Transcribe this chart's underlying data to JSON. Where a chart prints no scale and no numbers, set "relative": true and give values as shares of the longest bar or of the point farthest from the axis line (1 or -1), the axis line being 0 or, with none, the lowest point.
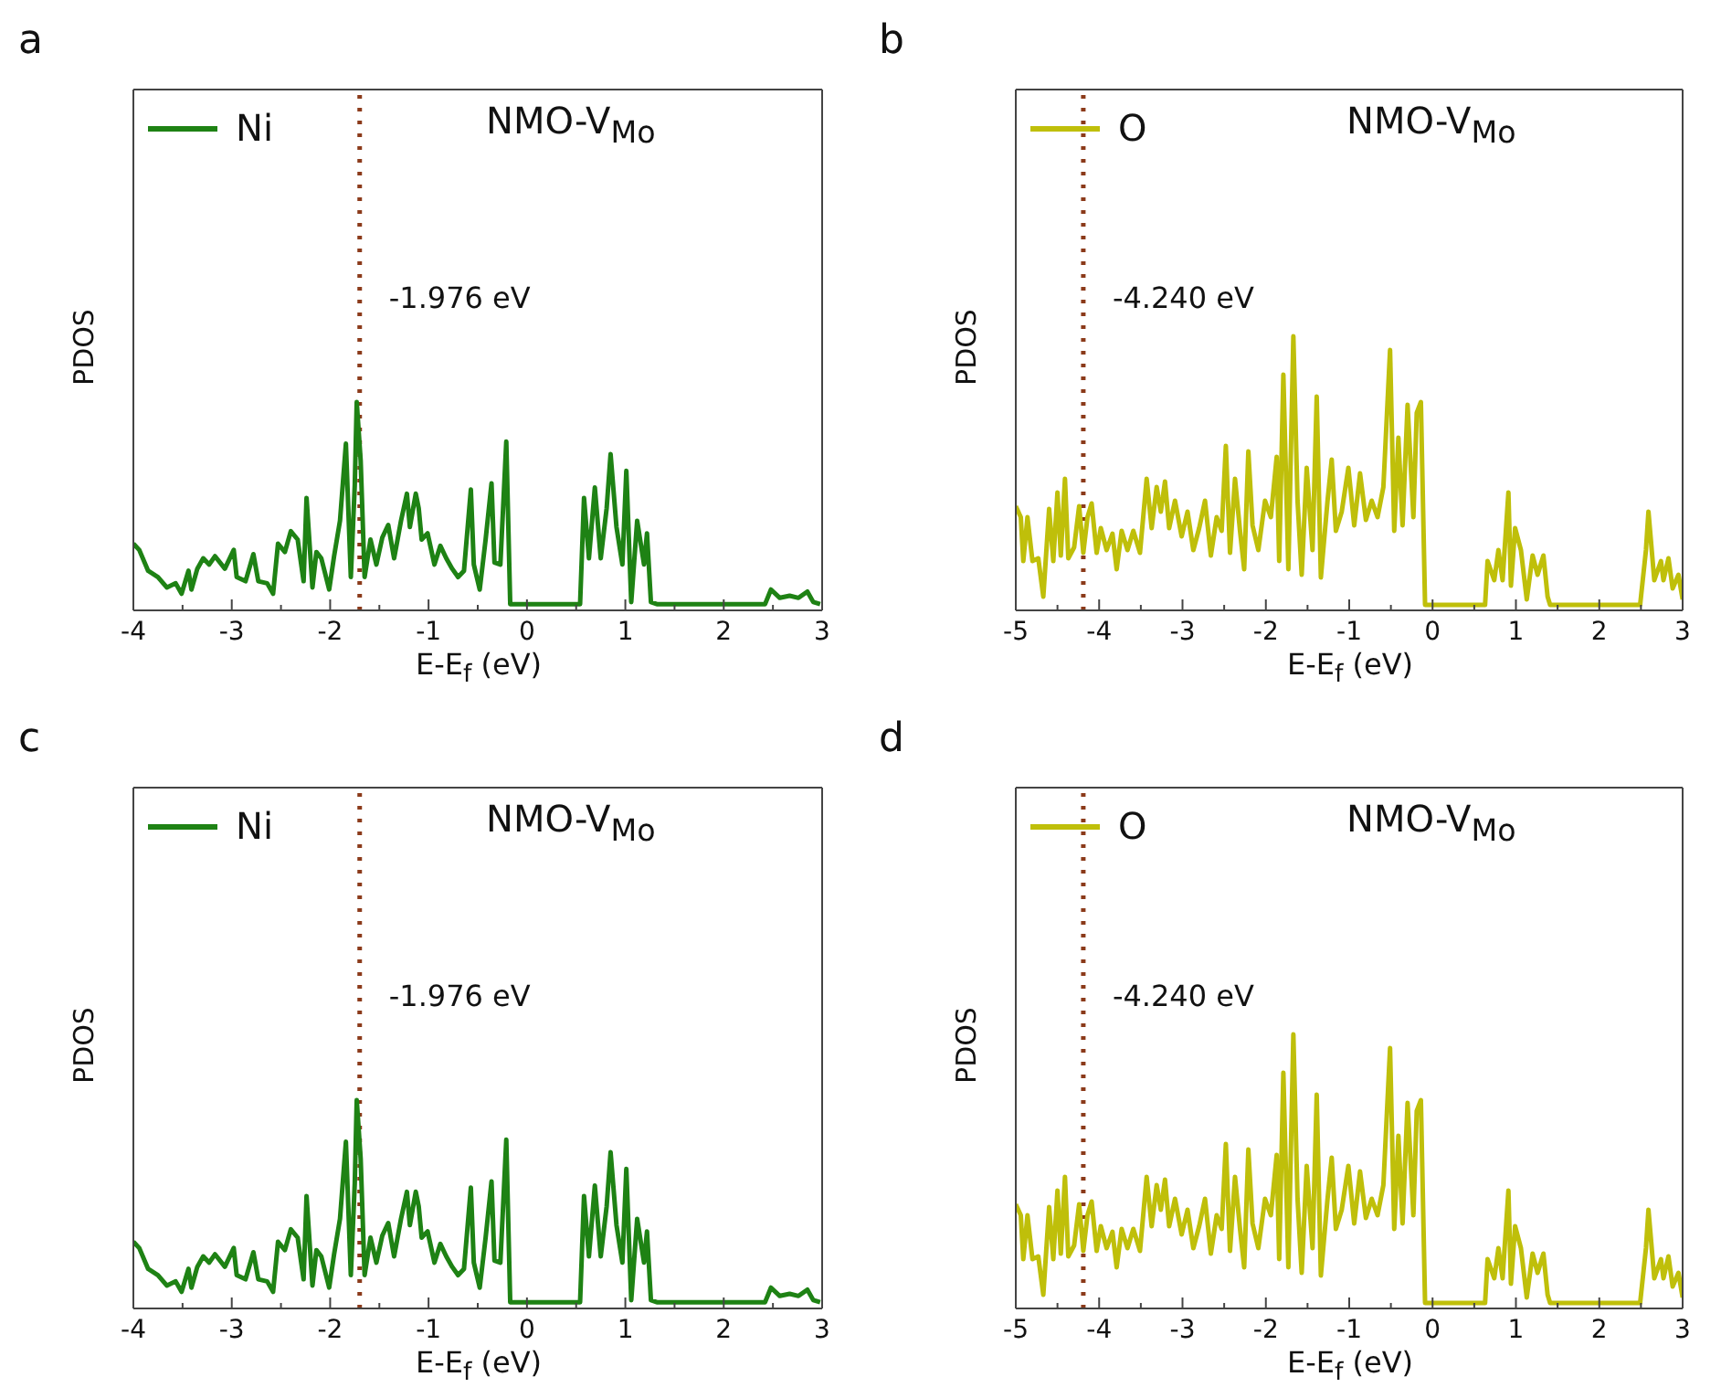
{
  "chart_data": [
    {
      "type": "line",
      "title": "a",
      "xlabel": "E-E$_{f}$ (eV)",
      "ylabel": "PDOS",
      "relative": true,
      "legend": "top left",
      "marker": "none",
      "line_style": "solid",
      "xlim": [
        -4,
        3
      ],
      "xticks": [
        -4,
        {
          "value": -3.5,
          "label": null
        },
        -3,
        {
          "value": -2.5,
          "label": null
        },
        -2,
        {
          "value": -1.5,
          "label": null
        },
        -1,
        {
          "value": -0.5,
          "label": null
        },
        0,
        {
          "value": 0.5,
          "label": null
        },
        1,
        {
          "value": 1.5,
          "label": null
        },
        2,
        {
          "value": 2.5,
          "label": null
        },
        3
      ],
      "annotations": [
        "NMO-V$_{Mo}$"
      ],
      "ref_lines": [
        {
          "axis": "x",
          "value": -1.7,
          "label": "-1.976 eV",
          "color": "#8b3a1a",
          "line_style": "dotted"
        }
      ],
      "x": [
        -4.0,
        -3.94,
        -3.85,
        -3.75,
        -3.66,
        -3.57,
        -3.51,
        -3.44,
        -3.41,
        -3.35,
        -3.29,
        -3.23,
        -3.17,
        -3.07,
        -2.98,
        -2.95,
        -2.86,
        -2.78,
        -2.73,
        -2.64,
        -2.58,
        -2.53,
        -2.46,
        -2.4,
        -2.33,
        -2.27,
        -2.24,
        -2.18,
        -2.14,
        -2.09,
        -2.01,
        -1.96,
        -1.9,
        -1.84,
        -1.79,
        -1.75,
        -1.73,
        -1.69,
        -1.65,
        -1.59,
        -1.53,
        -1.47,
        -1.41,
        -1.35,
        -1.28,
        -1.22,
        -1.19,
        -1.13,
        -1.1,
        -1.07,
        -1.01,
        -0.94,
        -0.88,
        -0.82,
        -0.76,
        -0.7,
        -0.64,
        -0.57,
        -0.54,
        -0.48,
        -0.42,
        -0.36,
        -0.33,
        -0.27,
        -0.21,
        -0.17,
        -0.11,
        0.54,
        0.58,
        0.63,
        0.69,
        0.75,
        0.81,
        0.85,
        0.91,
        0.97,
        1.01,
        1.06,
        1.12,
        1.19,
        1.22,
        1.26,
        1.32,
        2.42,
        2.48,
        2.57,
        2.67,
        2.76,
        2.85,
        2.91,
        2.98
      ],
      "series": [
        {
          "name": "Ni",
          "color": "#1e8214",
          "values": [
            0.32,
            0.29,
            0.19,
            0.16,
            0.11,
            0.13,
            0.08,
            0.19,
            0.1,
            0.2,
            0.25,
            0.22,
            0.26,
            0.2,
            0.29,
            0.16,
            0.14,
            0.27,
            0.14,
            0.13,
            0.08,
            0.32,
            0.28,
            0.38,
            0.34,
            0.14,
            0.54,
            0.11,
            0.28,
            0.25,
            0.1,
            0.26,
            0.43,
            0.8,
            0.16,
            0.6,
            1.0,
            0.72,
            0.16,
            0.34,
            0.22,
            0.35,
            0.41,
            0.25,
            0.43,
            0.56,
            0.4,
            0.56,
            0.49,
            0.34,
            0.37,
            0.22,
            0.31,
            0.25,
            0.2,
            0.16,
            0.19,
            0.58,
            0.22,
            0.1,
            0.34,
            0.61,
            0.23,
            0.22,
            0.81,
            0.03,
            0.03,
            0.03,
            0.54,
            0.25,
            0.59,
            0.25,
            0.49,
            0.75,
            0.4,
            0.22,
            0.67,
            0.04,
            0.43,
            0.22,
            0.37,
            0.04,
            0.03,
            0.03,
            0.1,
            0.06,
            0.07,
            0.06,
            0.09,
            0.04,
            0.03
          ]
        }
      ]
    },
    {
      "type": "line",
      "title": "b",
      "xlabel": "E-E$_{f}$ (eV)",
      "ylabel": "PDOS",
      "relative": true,
      "legend": "top left",
      "marker": "none",
      "line_style": "solid",
      "xlim": [
        -5,
        3
      ],
      "xticks": [
        -5,
        {
          "value": -4.5,
          "label": null
        },
        -4,
        {
          "value": -3.5,
          "label": null
        },
        -3,
        {
          "value": -2.5,
          "label": null
        },
        -2,
        {
          "value": -1.5,
          "label": null
        },
        -1,
        {
          "value": -0.5,
          "label": null
        },
        0,
        {
          "value": 0.5,
          "label": null
        },
        1,
        {
          "value": 1.5,
          "label": null
        },
        2,
        {
          "value": 2.5,
          "label": null
        },
        3
      ],
      "annotations": [
        "NMO-V$_{Mo}$"
      ],
      "ref_lines": [
        {
          "axis": "x",
          "value": -4.19,
          "label": "-4.240 eV",
          "color": "#8b3a1a",
          "line_style": "dotted"
        }
      ],
      "x": [
        -5.0,
        -4.94,
        -4.91,
        -4.86,
        -4.8,
        -4.73,
        -4.67,
        -4.6,
        -4.55,
        -4.5,
        -4.46,
        -4.41,
        -4.37,
        -4.3,
        -4.24,
        -4.19,
        -4.14,
        -4.09,
        -4.03,
        -3.98,
        -3.91,
        -3.84,
        -3.79,
        -3.73,
        -3.66,
        -3.59,
        -3.51,
        -3.43,
        -3.37,
        -3.31,
        -3.26,
        -3.21,
        -3.16,
        -3.09,
        -3.01,
        -2.94,
        -2.87,
        -2.8,
        -2.73,
        -2.66,
        -2.59,
        -2.53,
        -2.48,
        -2.43,
        -2.37,
        -2.31,
        -2.26,
        -2.21,
        -2.16,
        -2.09,
        -2.01,
        -1.94,
        -1.87,
        -1.84,
        -1.79,
        -1.73,
        -1.67,
        -1.62,
        -1.57,
        -1.51,
        -1.44,
        -1.39,
        -1.34,
        -1.26,
        -1.21,
        -1.16,
        -1.09,
        -1.01,
        -0.94,
        -0.87,
        -0.8,
        -0.73,
        -0.66,
        -0.59,
        -0.51,
        -0.46,
        -0.41,
        -0.36,
        -0.3,
        -0.23,
        -0.19,
        -0.14,
        -0.09,
        0.63,
        0.66,
        0.74,
        0.79,
        0.84,
        0.91,
        0.94,
        0.99,
        1.06,
        1.13,
        1.2,
        1.26,
        1.33,
        1.38,
        1.41,
        2.49,
        2.56,
        2.59,
        2.66,
        2.74,
        2.77,
        2.83,
        2.88,
        2.95,
        3.0
      ],
      "series": [
        {
          "name": "O",
          "color": "#bfbf0a",
          "values": [
            0.38,
            0.34,
            0.18,
            0.34,
            0.18,
            0.19,
            0.05,
            0.37,
            0.18,
            0.43,
            0.2,
            0.48,
            0.19,
            0.23,
            0.38,
            0.21,
            0.34,
            0.39,
            0.21,
            0.3,
            0.22,
            0.28,
            0.15,
            0.29,
            0.22,
            0.29,
            0.21,
            0.48,
            0.3,
            0.45,
            0.36,
            0.47,
            0.3,
            0.4,
            0.27,
            0.36,
            0.22,
            0.3,
            0.4,
            0.2,
            0.34,
            0.29,
            0.6,
            0.21,
            0.48,
            0.29,
            0.15,
            0.58,
            0.31,
            0.22,
            0.4,
            0.34,
            0.56,
            0.18,
            0.86,
            0.15,
            1.0,
            0.4,
            0.13,
            0.52,
            0.22,
            0.78,
            0.12,
            0.4,
            0.55,
            0.29,
            0.36,
            0.52,
            0.31,
            0.5,
            0.33,
            0.4,
            0.34,
            0.45,
            0.95,
            0.29,
            0.63,
            0.31,
            0.75,
            0.34,
            0.72,
            0.76,
            0.02,
            0.02,
            0.18,
            0.11,
            0.22,
            0.11,
            0.43,
            0.09,
            0.3,
            0.22,
            0.04,
            0.2,
            0.13,
            0.2,
            0.05,
            0.02,
            0.02,
            0.22,
            0.36,
            0.11,
            0.18,
            0.11,
            0.19,
            0.08,
            0.13,
            0.04
          ]
        }
      ]
    },
    {
      "type": "line",
      "title": "c",
      "xlabel": "E-E$_{f}$ (eV)",
      "ylabel": "PDOS",
      "relative": true,
      "legend": "top left",
      "marker": "none",
      "line_style": "solid",
      "xlim": [
        -4,
        3
      ],
      "xticks": [
        -4,
        {
          "value": -3.5,
          "label": null
        },
        -3,
        {
          "value": -2.5,
          "label": null
        },
        -2,
        {
          "value": -1.5,
          "label": null
        },
        -1,
        {
          "value": -0.5,
          "label": null
        },
        0,
        {
          "value": 0.5,
          "label": null
        },
        1,
        {
          "value": 1.5,
          "label": null
        },
        2,
        {
          "value": 2.5,
          "label": null
        },
        3
      ],
      "annotations": [
        "NMO-V$_{Mo}$"
      ],
      "ref_lines": [
        {
          "axis": "x",
          "value": -1.7,
          "label": "-1.976 eV",
          "color": "#8b3a1a",
          "line_style": "dotted"
        }
      ],
      "x": [
        -4.0,
        -3.94,
        -3.85,
        -3.75,
        -3.66,
        -3.57,
        -3.51,
        -3.44,
        -3.41,
        -3.35,
        -3.29,
        -3.23,
        -3.17,
        -3.07,
        -2.98,
        -2.95,
        -2.86,
        -2.78,
        -2.73,
        -2.64,
        -2.58,
        -2.53,
        -2.46,
        -2.4,
        -2.33,
        -2.27,
        -2.24,
        -2.18,
        -2.14,
        -2.09,
        -2.01,
        -1.96,
        -1.9,
        -1.84,
        -1.79,
        -1.75,
        -1.73,
        -1.69,
        -1.65,
        -1.59,
        -1.53,
        -1.47,
        -1.41,
        -1.35,
        -1.28,
        -1.22,
        -1.19,
        -1.13,
        -1.1,
        -1.07,
        -1.01,
        -0.94,
        -0.88,
        -0.82,
        -0.76,
        -0.7,
        -0.64,
        -0.57,
        -0.54,
        -0.48,
        -0.42,
        -0.36,
        -0.33,
        -0.27,
        -0.21,
        -0.17,
        -0.11,
        0.54,
        0.58,
        0.63,
        0.69,
        0.75,
        0.81,
        0.85,
        0.91,
        0.97,
        1.01,
        1.06,
        1.12,
        1.19,
        1.22,
        1.26,
        1.32,
        2.42,
        2.48,
        2.57,
        2.67,
        2.76,
        2.85,
        2.91,
        2.98
      ],
      "series": [
        {
          "name": "Ni",
          "color": "#1e8214",
          "values": [
            0.32,
            0.29,
            0.19,
            0.16,
            0.11,
            0.13,
            0.08,
            0.19,
            0.1,
            0.2,
            0.25,
            0.22,
            0.26,
            0.2,
            0.29,
            0.16,
            0.14,
            0.27,
            0.14,
            0.13,
            0.08,
            0.32,
            0.28,
            0.38,
            0.34,
            0.14,
            0.54,
            0.11,
            0.28,
            0.25,
            0.1,
            0.26,
            0.43,
            0.8,
            0.16,
            0.6,
            1.0,
            0.72,
            0.16,
            0.34,
            0.22,
            0.35,
            0.41,
            0.25,
            0.43,
            0.56,
            0.4,
            0.56,
            0.49,
            0.34,
            0.37,
            0.22,
            0.31,
            0.25,
            0.2,
            0.16,
            0.19,
            0.58,
            0.22,
            0.1,
            0.34,
            0.61,
            0.23,
            0.22,
            0.81,
            0.03,
            0.03,
            0.03,
            0.54,
            0.25,
            0.59,
            0.25,
            0.49,
            0.75,
            0.4,
            0.22,
            0.67,
            0.04,
            0.43,
            0.22,
            0.37,
            0.04,
            0.03,
            0.03,
            0.1,
            0.06,
            0.07,
            0.06,
            0.09,
            0.04,
            0.03
          ]
        }
      ]
    },
    {
      "type": "line",
      "title": "d",
      "xlabel": "E-E$_{f}$ (eV)",
      "ylabel": "PDOS",
      "relative": true,
      "legend": "top left",
      "marker": "none",
      "line_style": "solid",
      "xlim": [
        -5,
        3
      ],
      "xticks": [
        -5,
        {
          "value": -4.5,
          "label": null
        },
        -4,
        {
          "value": -3.5,
          "label": null
        },
        -3,
        {
          "value": -2.5,
          "label": null
        },
        -2,
        {
          "value": -1.5,
          "label": null
        },
        -1,
        {
          "value": -0.5,
          "label": null
        },
        0,
        {
          "value": 0.5,
          "label": null
        },
        1,
        {
          "value": 1.5,
          "label": null
        },
        2,
        {
          "value": 2.5,
          "label": null
        },
        3
      ],
      "annotations": [
        "NMO-V$_{Mo}$"
      ],
      "ref_lines": [
        {
          "axis": "x",
          "value": -4.19,
          "label": "-4.240 eV",
          "color": "#8b3a1a",
          "line_style": "dotted"
        }
      ],
      "x": [
        -5.0,
        -4.94,
        -4.91,
        -4.86,
        -4.8,
        -4.73,
        -4.67,
        -4.6,
        -4.55,
        -4.5,
        -4.46,
        -4.41,
        -4.37,
        -4.3,
        -4.24,
        -4.19,
        -4.14,
        -4.09,
        -4.03,
        -3.98,
        -3.91,
        -3.84,
        -3.79,
        -3.73,
        -3.66,
        -3.59,
        -3.51,
        -3.43,
        -3.37,
        -3.31,
        -3.26,
        -3.21,
        -3.16,
        -3.09,
        -3.01,
        -2.94,
        -2.87,
        -2.8,
        -2.73,
        -2.66,
        -2.59,
        -2.53,
        -2.48,
        -2.43,
        -2.37,
        -2.31,
        -2.26,
        -2.21,
        -2.16,
        -2.09,
        -2.01,
        -1.94,
        -1.87,
        -1.84,
        -1.79,
        -1.73,
        -1.67,
        -1.62,
        -1.57,
        -1.51,
        -1.44,
        -1.39,
        -1.34,
        -1.26,
        -1.21,
        -1.16,
        -1.09,
        -1.01,
        -0.94,
        -0.87,
        -0.8,
        -0.73,
        -0.66,
        -0.59,
        -0.51,
        -0.46,
        -0.41,
        -0.36,
        -0.3,
        -0.23,
        -0.19,
        -0.14,
        -0.09,
        0.63,
        0.66,
        0.74,
        0.79,
        0.84,
        0.91,
        0.94,
        0.99,
        1.06,
        1.13,
        1.2,
        1.26,
        1.33,
        1.38,
        1.41,
        2.49,
        2.56,
        2.59,
        2.66,
        2.74,
        2.77,
        2.83,
        2.88,
        2.95,
        3.0
      ],
      "series": [
        {
          "name": "O",
          "color": "#bfbf0a",
          "values": [
            0.38,
            0.34,
            0.18,
            0.34,
            0.18,
            0.19,
            0.05,
            0.37,
            0.18,
            0.43,
            0.2,
            0.48,
            0.19,
            0.23,
            0.38,
            0.21,
            0.34,
            0.39,
            0.21,
            0.3,
            0.22,
            0.28,
            0.15,
            0.29,
            0.22,
            0.29,
            0.21,
            0.48,
            0.3,
            0.45,
            0.36,
            0.47,
            0.3,
            0.4,
            0.27,
            0.36,
            0.22,
            0.3,
            0.4,
            0.2,
            0.34,
            0.29,
            0.6,
            0.21,
            0.48,
            0.29,
            0.15,
            0.58,
            0.31,
            0.22,
            0.4,
            0.34,
            0.56,
            0.18,
            0.86,
            0.15,
            1.0,
            0.4,
            0.13,
            0.52,
            0.22,
            0.78,
            0.12,
            0.4,
            0.55,
            0.29,
            0.36,
            0.52,
            0.31,
            0.5,
            0.33,
            0.4,
            0.34,
            0.45,
            0.95,
            0.29,
            0.63,
            0.31,
            0.75,
            0.34,
            0.72,
            0.76,
            0.02,
            0.02,
            0.18,
            0.11,
            0.22,
            0.11,
            0.43,
            0.09,
            0.3,
            0.22,
            0.04,
            0.2,
            0.13,
            0.2,
            0.05,
            0.02,
            0.02,
            0.22,
            0.36,
            0.11,
            0.18,
            0.11,
            0.19,
            0.08,
            0.13,
            0.04
          ]
        }
      ]
    }
  ]
}
